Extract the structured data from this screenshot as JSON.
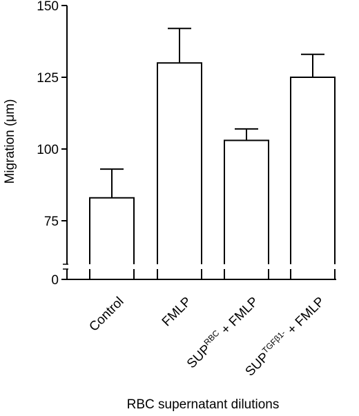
{
  "chart_data": {
    "type": "bar",
    "title": "",
    "xlabel": "RBC supernatant dilutions",
    "ylabel": "Migration (μm)",
    "categories": [
      {
        "label": "Control",
        "base": "Control",
        "sup": "",
        "tail": ""
      },
      {
        "label": "FMLP",
        "base": "FMLP",
        "sup": "",
        "tail": ""
      },
      {
        "label": "SUP RBC + FMLP",
        "base": "SUP",
        "sup": "RBC",
        "tail": " + FMLP"
      },
      {
        "label": "SUP TGFβ1- + FMLP",
        "base": "SUP",
        "sup": "TGFβ1-",
        "tail": " + FMLP"
      }
    ],
    "values": [
      83,
      130,
      103,
      125
    ],
    "errors": [
      10,
      12,
      4,
      8
    ],
    "yticks": [
      "0",
      "75",
      "100",
      "125",
      "150"
    ],
    "axis_break": true,
    "ylim": [
      0,
      150
    ],
    "grid": false,
    "bar_fill": "#ffffff",
    "line_color": "#000000"
  }
}
